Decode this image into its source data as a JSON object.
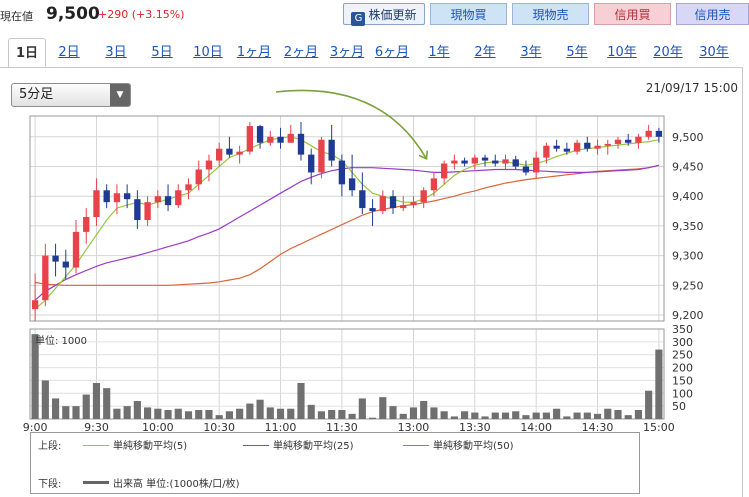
{
  "header": {
    "price_label": "現在値",
    "price": "9,500",
    "change": "+290 (+3.15%)",
    "buttons": {
      "refresh": "株価更新",
      "buy": "現物買",
      "sell": "現物売",
      "margin_buy": "信用買",
      "margin_sell": "信用売"
    }
  },
  "tabs": [
    "1日",
    "2日",
    "3日",
    "5日",
    "10日",
    "1ヶ月",
    "2ヶ月",
    "3ヶ月",
    "6ヶ月",
    "1年",
    "2年",
    "3年",
    "5年",
    "10年",
    "20年",
    "30年"
  ],
  "active_tab": "1日",
  "interval_select": "5分足",
  "datetime": "21/09/17 15:00",
  "colors": {
    "up": "#e8424a",
    "down": "#1f3a93",
    "ma5": "#9bc440",
    "ma25": "#9b3ac9",
    "ma50": "#d9653a",
    "volume": "#707070",
    "arrow": "#7ba23c"
  },
  "chart_data": [
    {
      "type": "candlestick",
      "x": [
        "9:00",
        "9:05",
        "9:10",
        "9:15",
        "9:20",
        "9:25",
        "9:30",
        "9:35",
        "9:40",
        "9:45",
        "9:50",
        "9:55",
        "10:00",
        "10:05",
        "10:10",
        "10:15",
        "10:20",
        "10:25",
        "10:30",
        "10:35",
        "10:40",
        "10:45",
        "10:50",
        "10:55",
        "11:00",
        "11:05",
        "11:10",
        "11:15",
        "11:20",
        "11:25",
        "11:30",
        "12:30",
        "12:35",
        "12:40",
        "12:45",
        "12:50",
        "12:55",
        "13:00",
        "13:05",
        "13:10",
        "13:15",
        "13:20",
        "13:25",
        "13:30",
        "13:35",
        "13:40",
        "13:45",
        "13:50",
        "13:55",
        "14:00",
        "14:05",
        "14:10",
        "14:15",
        "14:20",
        "14:25",
        "14:30",
        "14:35",
        "14:40",
        "14:45",
        "14:50",
        "14:55",
        "15:00"
      ],
      "ohlc": [
        [
          9210,
          9270,
          9190,
          9225
        ],
        [
          9225,
          9320,
          9215,
          9300
        ],
        [
          9300,
          9320,
          9265,
          9290
        ],
        [
          9290,
          9310,
          9260,
          9280
        ],
        [
          9280,
          9360,
          9270,
          9340
        ],
        [
          9340,
          9380,
          9320,
          9365
        ],
        [
          9365,
          9430,
          9350,
          9410
        ],
        [
          9410,
          9420,
          9380,
          9390
        ],
        [
          9390,
          9420,
          9370,
          9405
        ],
        [
          9405,
          9420,
          9380,
          9395
        ],
        [
          9395,
          9410,
          9345,
          9360
        ],
        [
          9360,
          9400,
          9350,
          9390
        ],
        [
          9390,
          9410,
          9380,
          9400
        ],
        [
          9400,
          9420,
          9375,
          9385
        ],
        [
          9385,
          9420,
          9380,
          9410
        ],
        [
          9410,
          9430,
          9395,
          9420
        ],
        [
          9420,
          9460,
          9410,
          9445
        ],
        [
          9445,
          9470,
          9425,
          9460
        ],
        [
          9460,
          9490,
          9450,
          9480
        ],
        [
          9480,
          9500,
          9465,
          9470
        ],
        [
          9470,
          9485,
          9455,
          9475
        ],
        [
          9475,
          9525,
          9470,
          9518
        ],
        [
          9518,
          9520,
          9480,
          9490
        ],
        [
          9490,
          9510,
          9485,
          9500
        ],
        [
          9500,
          9515,
          9480,
          9490
        ],
        [
          9490,
          9520,
          9490,
          9505
        ],
        [
          9505,
          9525,
          9460,
          9470
        ],
        [
          9470,
          9480,
          9420,
          9440
        ],
        [
          9440,
          9500,
          9430,
          9495
        ],
        [
          9495,
          9520,
          9450,
          9460
        ],
        [
          9460,
          9470,
          9400,
          9420
        ],
        [
          9430,
          9470,
          9400,
          9410
        ],
        [
          9410,
          9440,
          9370,
          9380
        ],
        [
          9380,
          9395,
          9350,
          9375
        ],
        [
          9375,
          9410,
          9370,
          9400
        ],
        [
          9400,
          9410,
          9370,
          9380
        ],
        [
          9380,
          9400,
          9375,
          9385
        ],
        [
          9385,
          9400,
          9380,
          9390
        ],
        [
          9390,
          9415,
          9380,
          9410
        ],
        [
          9410,
          9440,
          9400,
          9430
        ],
        [
          9430,
          9460,
          9420,
          9455
        ],
        [
          9455,
          9470,
          9445,
          9460
        ],
        [
          9460,
          9465,
          9450,
          9455
        ],
        [
          9455,
          9470,
          9445,
          9465
        ],
        [
          9465,
          9470,
          9450,
          9460
        ],
        [
          9460,
          9470,
          9450,
          9455
        ],
        [
          9455,
          9470,
          9445,
          9462
        ],
        [
          9462,
          9468,
          9445,
          9450
        ],
        [
          9450,
          9460,
          9435,
          9440
        ],
        [
          9440,
          9475,
          9430,
          9465
        ],
        [
          9465,
          9490,
          9455,
          9485
        ],
        [
          9485,
          9495,
          9475,
          9480
        ],
        [
          9480,
          9490,
          9470,
          9475
        ],
        [
          9475,
          9495,
          9470,
          9490
        ],
        [
          9490,
          9500,
          9475,
          9480
        ],
        [
          9480,
          9495,
          9470,
          9485
        ],
        [
          9485,
          9495,
          9470,
          9488
        ],
        [
          9488,
          9500,
          9480,
          9495
        ],
        [
          9495,
          9505,
          9485,
          9490
        ],
        [
          9490,
          9505,
          9480,
          9500
        ],
        [
          9500,
          9520,
          9495,
          9510
        ],
        [
          9510,
          9515,
          9490,
          9500
        ]
      ],
      "ma5": [
        9210,
        9225,
        9245,
        9265,
        9285,
        9310,
        9335,
        9360,
        9380,
        9385,
        9390,
        9385,
        9390,
        9395,
        9400,
        9405,
        9420,
        9435,
        9450,
        9465,
        9472,
        9480,
        9488,
        9495,
        9498,
        9500,
        9495,
        9485,
        9475,
        9470,
        9460,
        9440,
        9420,
        9405,
        9400,
        9395,
        9390,
        9390,
        9395,
        9405,
        9420,
        9435,
        9445,
        9452,
        9456,
        9458,
        9458,
        9455,
        9452,
        9455,
        9460,
        9467,
        9472,
        9478,
        9480,
        9482,
        9484,
        9486,
        9488,
        9490,
        9492,
        9495
      ],
      "ma25": [
        9225,
        9240,
        9250,
        9260,
        9268,
        9275,
        9282,
        9288,
        9292,
        9296,
        9300,
        9305,
        9310,
        9315,
        9320,
        9325,
        9332,
        9338,
        9345,
        9355,
        9365,
        9375,
        9385,
        9395,
        9405,
        9415,
        9425,
        9432,
        9438,
        9443,
        9446,
        9448,
        9448,
        9448,
        9447,
        9446,
        9445,
        9444,
        9442,
        9440,
        9440,
        9441,
        9442,
        9443,
        9444,
        9445,
        9445,
        9445,
        9444,
        9443,
        9442,
        9441,
        9440,
        9440,
        9440,
        9441,
        9442,
        9443,
        9444,
        9445,
        9448,
        9452
      ],
      "ma50": [
        9255,
        9252,
        9251,
        9250,
        9250,
        9250,
        9250,
        9250,
        9250,
        9250,
        9250,
        9250,
        9250,
        9250,
        9251,
        9252,
        9253,
        9254,
        9256,
        9259,
        9262,
        9268,
        9278,
        9290,
        9302,
        9312,
        9320,
        9328,
        9336,
        9344,
        9352,
        9360,
        9368,
        9374,
        9378,
        9381,
        9384,
        9386,
        9389,
        9392,
        9396,
        9400,
        9405,
        9409,
        9414,
        9418,
        9422,
        9425,
        9428,
        9430,
        9432,
        9434,
        9436,
        9438,
        9440,
        9442,
        9443,
        9444,
        9445,
        9446,
        9448,
        9452
      ],
      "y_ticks": [
        "9,500",
        "9,450",
        "9,400",
        "9,350",
        "9,300",
        "9,250",
        "9,200"
      ],
      "ylim": [
        9190,
        9535
      ],
      "legend": [
        "単純移動平均(5)",
        "単純移動平均(25)",
        "単純移動平均(50)"
      ],
      "legend_label": "上段:"
    },
    {
      "type": "bar",
      "unit_label": "単位: 1000",
      "x_ticks": [
        "9:00",
        "9:30",
        "10:00",
        "10:30",
        "11:00",
        "11:30",
        "13:00",
        "13:30",
        "14:00",
        "14:30",
        "15:00"
      ],
      "y_ticks": [
        "350",
        "300",
        "250",
        "200",
        "150",
        "100",
        "50"
      ],
      "ylim": [
        0,
        350
      ],
      "values": [
        330,
        150,
        80,
        50,
        50,
        95,
        140,
        120,
        40,
        50,
        70,
        45,
        40,
        35,
        40,
        30,
        35,
        35,
        15,
        30,
        40,
        60,
        75,
        45,
        40,
        40,
        140,
        55,
        30,
        35,
        35,
        20,
        80,
        5,
        85,
        50,
        20,
        45,
        70,
        45,
        30,
        10,
        30,
        25,
        10,
        25,
        25,
        30,
        15,
        25,
        25,
        40,
        10,
        25,
        25,
        20,
        40,
        35,
        15,
        35,
        110,
        270
      ],
      "legend": [
        "出来高 単位:(1000株/口/枚)"
      ],
      "legend_label": "下段:"
    }
  ]
}
